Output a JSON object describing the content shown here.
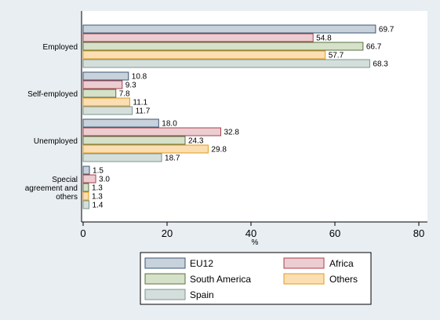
{
  "chart_data": {
    "type": "bar",
    "orientation": "horizontal",
    "title": "",
    "xlabel": "%",
    "ylabel": "",
    "xlim": [
      0,
      82
    ],
    "xticks": [
      0,
      20,
      40,
      60,
      80
    ],
    "grid": false,
    "legend_position": "bottom",
    "categories": [
      "Employed",
      "Self-employed",
      "Unemployed",
      "Special agreement and others"
    ],
    "category_label_lines": [
      [
        "Employed"
      ],
      [
        "Self-employed"
      ],
      [
        "Unemployed"
      ],
      [
        "Special",
        "agreement and",
        "others"
      ]
    ],
    "series": [
      {
        "name": "EU12",
        "values": [
          69.7,
          10.8,
          18.0,
          1.5
        ],
        "labels": [
          "69.7",
          "10.8",
          "18.0",
          "1.5"
        ],
        "color": "#c8d2dc",
        "stroke": "#3e5570"
      },
      {
        "name": "Africa",
        "values": [
          54.8,
          9.3,
          32.8,
          3.0
        ],
        "labels": [
          "54.8",
          "9.3",
          "32.8",
          "3.0"
        ],
        "color": "#eccdd1",
        "stroke": "#a8404b"
      },
      {
        "name": "South America",
        "values": [
          66.7,
          7.8,
          24.3,
          1.3
        ],
        "labels": [
          "66.7",
          "7.8",
          "24.3",
          "1.3"
        ],
        "color": "#d5e1c9",
        "stroke": "#5c7040"
      },
      {
        "name": "Others",
        "values": [
          57.7,
          11.1,
          29.8,
          1.3
        ],
        "labels": [
          "57.7",
          "11.1",
          "29.8",
          "1.3"
        ],
        "color": "#fbdfb2",
        "stroke": "#e49a1e"
      },
      {
        "name": "Spain",
        "values": [
          68.3,
          11.7,
          18.7,
          1.4
        ],
        "labels": [
          "68.3",
          "11.7",
          "18.7",
          "1.4"
        ],
        "color": "#d4dfdc",
        "stroke": "#7b948e"
      }
    ]
  }
}
